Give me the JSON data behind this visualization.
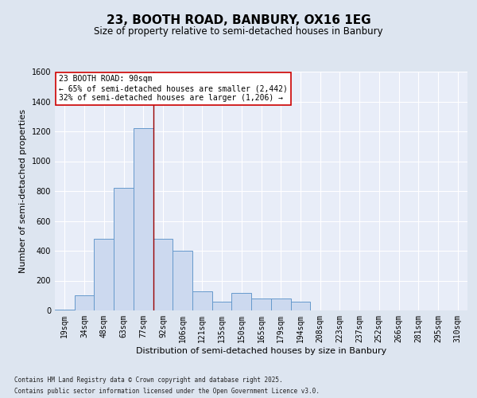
{
  "title1": "23, BOOTH ROAD, BANBURY, OX16 1EG",
  "title2": "Size of property relative to semi-detached houses in Banbury",
  "xlabel": "Distribution of semi-detached houses by size in Banbury",
  "ylabel": "Number of semi-detached properties",
  "categories": [
    "19sqm",
    "34sqm",
    "48sqm",
    "63sqm",
    "77sqm",
    "92sqm",
    "106sqm",
    "121sqm",
    "135sqm",
    "150sqm",
    "165sqm",
    "179sqm",
    "194sqm",
    "208sqm",
    "223sqm",
    "237sqm",
    "252sqm",
    "266sqm",
    "281sqm",
    "295sqm",
    "310sqm"
  ],
  "values": [
    5,
    100,
    480,
    820,
    1220,
    480,
    400,
    130,
    60,
    120,
    80,
    80,
    60,
    0,
    0,
    0,
    0,
    0,
    0,
    0,
    0
  ],
  "bar_color": "#ccd9ef",
  "bar_edge_color": "#6699cc",
  "vline_x": 4.5,
  "vline_color": "#990000",
  "annotation_text": "23 BOOTH ROAD: 90sqm\n← 65% of semi-detached houses are smaller (2,442)\n32% of semi-detached houses are larger (1,206) →",
  "annotation_box_color": "#ffffff",
  "annotation_box_edge": "#cc0000",
  "footnote1": "Contains HM Land Registry data © Crown copyright and database right 2025.",
  "footnote2": "Contains public sector information licensed under the Open Government Licence v3.0.",
  "ylim": [
    0,
    1600
  ],
  "yticks": [
    0,
    200,
    400,
    600,
    800,
    1000,
    1200,
    1400,
    1600
  ],
  "bg_color": "#dde5f0",
  "plot_bg_color": "#e8edf8",
  "grid_color": "#ffffff",
  "title1_fontsize": 11,
  "title2_fontsize": 8.5,
  "tick_fontsize": 7,
  "label_fontsize": 8,
  "annot_fontsize": 7,
  "footnote_fontsize": 5.5
}
